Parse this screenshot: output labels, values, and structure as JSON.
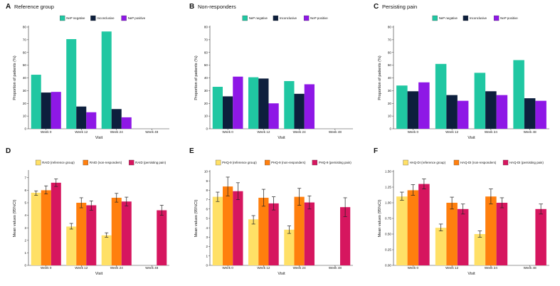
{
  "chart_data": [
    {
      "id": "A",
      "type": "bar",
      "title": "Reference group",
      "xlabel": "Visit",
      "ylabel": "Proportion of patients (%)",
      "ylim": [
        0,
        80
      ],
      "yticks": [
        0,
        10,
        20,
        30,
        40,
        50,
        60,
        70,
        80
      ],
      "categories": [
        "Week 0",
        "Week 12",
        "Week 24",
        "Week 48"
      ],
      "series": [
        {
          "name": "NeP negative",
          "color": "#20c7a2",
          "values": [
            42.5,
            70.5,
            76.5,
            null
          ]
        },
        {
          "name": "Inconclusive",
          "color": "#0d1f3d",
          "values": [
            28.5,
            17.5,
            15.5,
            null
          ]
        },
        {
          "name": "NeP positive",
          "color": "#8e18e6",
          "values": [
            29,
            13,
            9,
            null
          ]
        }
      ]
    },
    {
      "id": "B",
      "type": "bar",
      "title": "Non-responders",
      "xlabel": "Visit",
      "ylabel": "Proportion of patients (%)",
      "ylim": [
        0,
        80
      ],
      "yticks": [
        0,
        10,
        20,
        30,
        40,
        50,
        60,
        70,
        80
      ],
      "categories": [
        "Week 0",
        "Week 12",
        "Week 24",
        "Week 48"
      ],
      "series": [
        {
          "name": "NeP negative",
          "color": "#20c7a2",
          "values": [
            33,
            40.5,
            37.5,
            null
          ]
        },
        {
          "name": "Inconclusive",
          "color": "#0d1f3d",
          "values": [
            25.5,
            39.5,
            27.5,
            null
          ]
        },
        {
          "name": "NeP positive",
          "color": "#8e18e6",
          "values": [
            41,
            20,
            35,
            null
          ]
        }
      ]
    },
    {
      "id": "C",
      "type": "bar",
      "title": "Persisting pain",
      "xlabel": "Visit",
      "ylabel": "Proportion of patients (%)",
      "ylim": [
        0,
        80
      ],
      "yticks": [
        0,
        10,
        20,
        30,
        40,
        50,
        60,
        70,
        80
      ],
      "categories": [
        "Week 0",
        "Week 12",
        "Week 24",
        "Week 48"
      ],
      "series": [
        {
          "name": "NeP negative",
          "color": "#20c7a2",
          "values": [
            34,
            51,
            44,
            54
          ]
        },
        {
          "name": "Inconclusive",
          "color": "#0d1f3d",
          "values": [
            29.5,
            26.5,
            29.5,
            24
          ]
        },
        {
          "name": "NeP positive",
          "color": "#8e18e6",
          "values": [
            36.5,
            22,
            26.5,
            22
          ]
        }
      ]
    },
    {
      "id": "D",
      "type": "bar",
      "title": "",
      "xlabel": "Visit",
      "ylabel": "Mean values (95%CI)",
      "ylim": [
        0,
        7.5
      ],
      "yticks": [
        0,
        1,
        2,
        3,
        4,
        5,
        6,
        7
      ],
      "categories": [
        "Week 0",
        "Week 12",
        "Week 24",
        "Week 48"
      ],
      "series": [
        {
          "name": "RAID (reference group)",
          "color": "#ffe066",
          "values": [
            5.8,
            3.1,
            2.4,
            null
          ],
          "ci_low": [
            5.6,
            2.9,
            2.25,
            null
          ],
          "ci_high": [
            5.95,
            3.35,
            2.6,
            null
          ]
        },
        {
          "name": "RAID (non-responders)",
          "color": "#ff7f0e",
          "values": [
            6.0,
            5.0,
            5.4,
            null
          ],
          "ci_low": [
            5.7,
            4.6,
            5.05,
            null
          ],
          "ci_high": [
            6.35,
            5.4,
            5.75,
            null
          ]
        },
        {
          "name": "RAID (persisting pain)",
          "color": "#d6165f",
          "values": [
            6.6,
            4.8,
            5.1,
            4.4
          ],
          "ci_low": [
            6.3,
            4.4,
            4.75,
            4.0
          ],
          "ci_high": [
            6.9,
            5.15,
            5.45,
            4.8
          ]
        }
      ]
    },
    {
      "id": "E",
      "type": "bar",
      "title": "",
      "xlabel": "Visit",
      "ylabel": "Mean values (95%CI)",
      "ylim": [
        0,
        10
      ],
      "yticks": [
        0,
        1,
        2,
        3,
        4,
        5,
        6,
        7,
        8,
        9,
        10
      ],
      "categories": [
        "Week 0",
        "Week 12",
        "Week 24",
        "Week 48"
      ],
      "series": [
        {
          "name": "PHQ-9 (reference group)",
          "color": "#ffe066",
          "values": [
            7.3,
            4.9,
            3.8,
            null
          ],
          "ci_low": [
            6.8,
            4.4,
            3.4,
            null
          ],
          "ci_high": [
            7.8,
            5.3,
            4.2,
            null
          ]
        },
        {
          "name": "PHQ-9 (non-responders)",
          "color": "#ff7f0e",
          "values": [
            8.4,
            7.2,
            7.3,
            null
          ],
          "ci_low": [
            7.4,
            6.3,
            6.4,
            null
          ],
          "ci_high": [
            9.4,
            8.1,
            8.2,
            null
          ]
        },
        {
          "name": "PHQ-9 (persisting pain)",
          "color": "#d6165f",
          "values": [
            7.9,
            6.6,
            6.7,
            6.2
          ],
          "ci_low": [
            7.0,
            5.9,
            6.0,
            5.2
          ],
          "ci_high": [
            8.8,
            7.3,
            7.4,
            7.2
          ]
        }
      ]
    },
    {
      "id": "F",
      "type": "bar",
      "title": "",
      "xlabel": "Visit",
      "ylabel": "Mean values (95%CI)",
      "ylim": [
        0,
        1.5
      ],
      "yticks": [
        0,
        0.25,
        0.5,
        0.75,
        1.0,
        1.25,
        1.5
      ],
      "ytick_labels": [
        "0.00",
        "0.25",
        "0.50",
        "0.75",
        "1.00",
        "1.25",
        "1.50"
      ],
      "categories": [
        "Week 0",
        "Week 12",
        "Week 24",
        "Week 48"
      ],
      "series": [
        {
          "name": "HAQ-DI (reference group)",
          "color": "#ffe066",
          "values": [
            1.1,
            0.6,
            0.5,
            null
          ],
          "ci_low": [
            1.04,
            0.55,
            0.45,
            null
          ],
          "ci_high": [
            1.17,
            0.66,
            0.55,
            null
          ]
        },
        {
          "name": "HAQ-DI (non-responders)",
          "color": "#ff7f0e",
          "values": [
            1.2,
            1.0,
            1.1,
            null
          ],
          "ci_low": [
            1.12,
            0.9,
            0.98,
            null
          ],
          "ci_high": [
            1.29,
            1.09,
            1.22,
            null
          ]
        },
        {
          "name": "HAQ-DI (persisting pain)",
          "color": "#d6165f",
          "values": [
            1.3,
            0.9,
            1.0,
            0.9
          ],
          "ci_low": [
            1.22,
            0.82,
            0.92,
            0.82
          ],
          "ci_high": [
            1.38,
            0.98,
            1.08,
            0.98
          ]
        }
      ]
    }
  ]
}
